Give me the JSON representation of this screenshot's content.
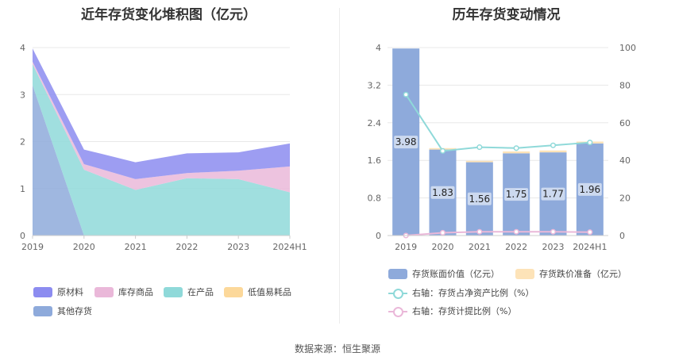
{
  "chart_data": [
    {
      "type": "area",
      "title": "近年存货变化堆积图（亿元）",
      "categories": [
        "2019",
        "2020",
        "2021",
        "2022",
        "2023",
        "2024H1"
      ],
      "ylim": [
        0,
        4
      ],
      "yticks": [
        0,
        1,
        2,
        3,
        4
      ],
      "grid": true,
      "legend_position": "bottom",
      "series": [
        {
          "name": "其他存货",
          "color": "#8eaadb",
          "values": [
            3.2,
            0,
            0,
            0,
            0,
            0
          ]
        },
        {
          "name": "在产品",
          "color": "#8fd9d9",
          "values": [
            0.45,
            1.4,
            0.97,
            1.22,
            1.2,
            0.92
          ]
        },
        {
          "name": "低值易耗品",
          "color": "#fcd89a",
          "values": [
            0,
            0,
            0,
            0,
            0,
            0
          ]
        },
        {
          "name": "库存商品",
          "color": "#eab8d9",
          "values": [
            0.05,
            0.12,
            0.23,
            0.11,
            0.18,
            0.55
          ]
        },
        {
          "name": "原材料",
          "color": "#8c8cf0",
          "values": [
            0.28,
            0.31,
            0.36,
            0.42,
            0.39,
            0.49
          ]
        }
      ]
    },
    {
      "type": "bar",
      "title": "历年存货变动情况",
      "categories": [
        "2019",
        "2020",
        "2021",
        "2022",
        "2023",
        "2024H1"
      ],
      "ylim": [
        0,
        4
      ],
      "yticks": [
        "0",
        "0.8",
        "1.6",
        "2.4",
        "3.2",
        "4"
      ],
      "y2lim": [
        0,
        100
      ],
      "y2ticks": [
        "0",
        "20",
        "40",
        "60",
        "80",
        "100"
      ],
      "legend_position": "bottom",
      "series": [
        {
          "name": "存货账面价值（亿元）",
          "color": "#8eaadb",
          "values": [
            3.98,
            1.83,
            1.56,
            1.75,
            1.77,
            1.96
          ],
          "labels": [
            "3.98",
            "1.83",
            "1.56",
            "1.75",
            "1.77",
            "1.96"
          ]
        },
        {
          "name": "存货跌价准备（亿元）",
          "color": "#fde3b8",
          "values": [
            0,
            0.03,
            0.03,
            0.04,
            0.04,
            0.04
          ]
        },
        {
          "name": "右轴：存货占净资产比例（%）",
          "color": "#8fd9d9",
          "axis": "right",
          "values": [
            75,
            45,
            47,
            46.5,
            48,
            49.5
          ]
        },
        {
          "name": "右轴：存货计提比例（%）",
          "color": "#eab8d9",
          "axis": "right",
          "values": [
            0,
            1.5,
            2,
            2,
            2,
            1.8
          ]
        }
      ]
    }
  ],
  "source": "数据来源：恒生聚源"
}
